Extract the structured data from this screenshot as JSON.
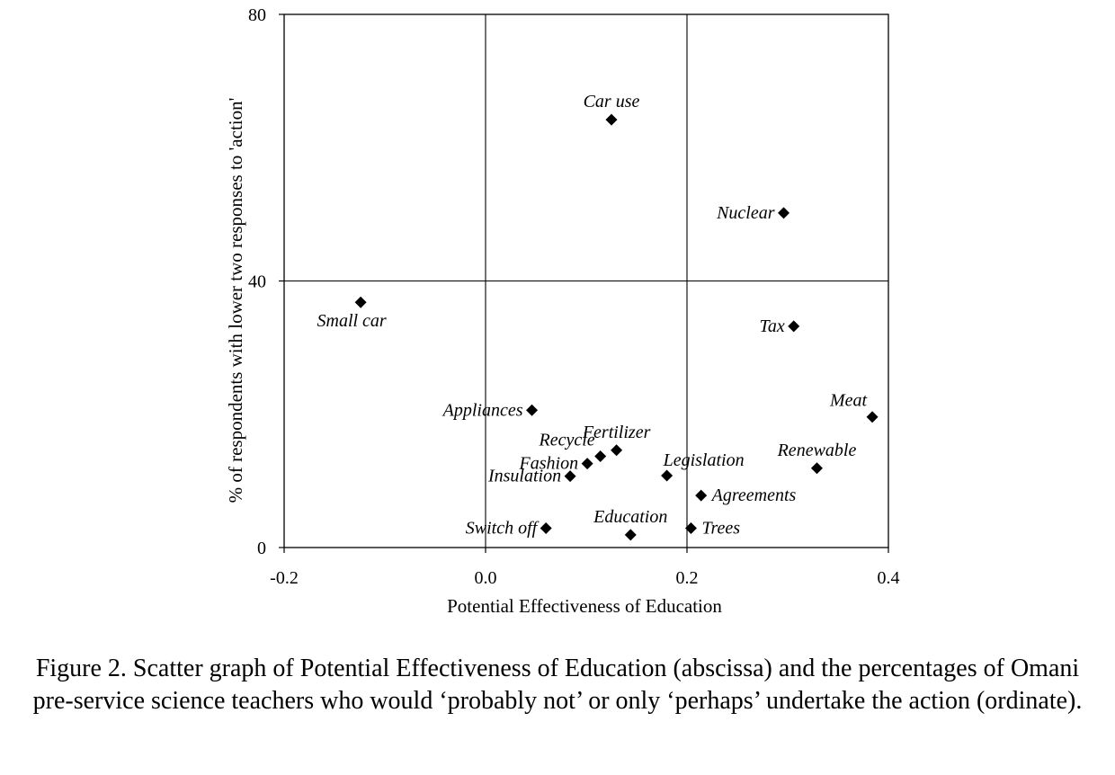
{
  "chart_data": {
    "type": "scatter",
    "xlabel": "Potential Effectiveness of Education",
    "ylabel": "% of respondents with lower two responses to 'action'",
    "xlim": [
      -0.2,
      0.4
    ],
    "ylim": [
      0,
      80
    ],
    "xticks": [
      {
        "value": -0.2,
        "label": "-0.2"
      },
      {
        "value": 0.0,
        "label": "0.0"
      },
      {
        "value": 0.2,
        "label": "0.2"
      },
      {
        "value": 0.4,
        "label": "0.4"
      }
    ],
    "yticks": [
      {
        "value": 0,
        "label": "0"
      },
      {
        "value": 40,
        "label": "40"
      },
      {
        "value": 80,
        "label": "80"
      }
    ],
    "gridlines": {
      "x": [
        0.0,
        0.2
      ],
      "y": [
        40
      ]
    },
    "marker": "diamond",
    "points": [
      {
        "label": "Car use",
        "x": 0.125,
        "y": 64.2,
        "label_pos": "above"
      },
      {
        "label": "Nuclear",
        "x": 0.296,
        "y": 50.2,
        "label_pos": "left"
      },
      {
        "label": "Small car",
        "x": -0.124,
        "y": 36.8,
        "label_pos": "below"
      },
      {
        "label": "Tax",
        "x": 0.306,
        "y": 33.2,
        "label_pos": "left"
      },
      {
        "label": "Appliances",
        "x": 0.046,
        "y": 20.6,
        "label_pos": "left"
      },
      {
        "label": "Meat",
        "x": 0.384,
        "y": 19.6,
        "label_pos": "above-left"
      },
      {
        "label": "Fertilizer",
        "x": 0.13,
        "y": 14.6,
        "label_pos": "above"
      },
      {
        "label": "Recycle",
        "x": 0.114,
        "y": 13.7,
        "label_pos": "above-left"
      },
      {
        "label": "Fashion",
        "x": 0.101,
        "y": 12.6,
        "label_pos": "left"
      },
      {
        "label": "Renewable",
        "x": 0.329,
        "y": 11.9,
        "label_pos": "above"
      },
      {
        "label": "Legislation",
        "x": 0.18,
        "y": 10.8,
        "label_pos": "above-right"
      },
      {
        "label": "Insulation",
        "x": 0.084,
        "y": 10.7,
        "label_pos": "left"
      },
      {
        "label": "Agreements",
        "x": 0.214,
        "y": 7.8,
        "label_pos": "right"
      },
      {
        "label": "Switch off",
        "x": 0.06,
        "y": 2.9,
        "label_pos": "left"
      },
      {
        "label": "Trees",
        "x": 0.204,
        "y": 2.9,
        "label_pos": "right"
      },
      {
        "label": "Education",
        "x": 0.144,
        "y": 1.9,
        "label_pos": "above"
      }
    ]
  },
  "caption": "Figure 2. Scatter graph of Potential Effectiveness of Education (abscissa) and the percentages of Omani pre-service science teachers who would ‘probably not’ or only ‘perhaps’ undertake the action (ordinate)."
}
